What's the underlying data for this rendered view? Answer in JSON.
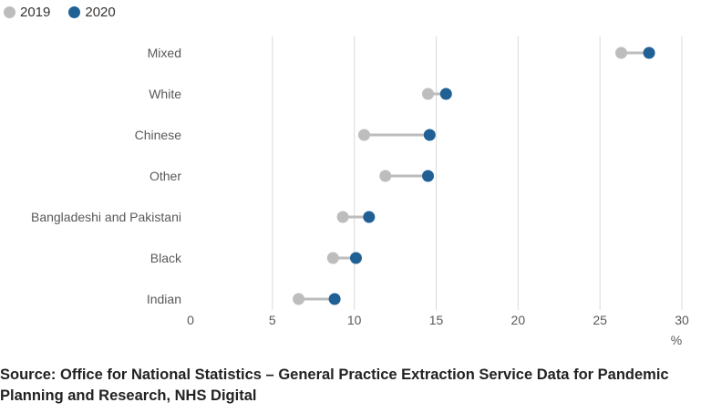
{
  "chart_data": {
    "type": "dumbbell",
    "title": "",
    "xlabel": "%",
    "ylabel": "",
    "xlim": [
      0,
      30
    ],
    "xticks": [
      0,
      5,
      10,
      15,
      20,
      25,
      30
    ],
    "grid": true,
    "legend_position": "top-left",
    "categories": [
      "Mixed",
      "White",
      "Chinese",
      "Other",
      "Bangladeshi and Pakistani",
      "Black",
      "Indian"
    ],
    "series": [
      {
        "name": "2019",
        "color": "#bdbdbd",
        "values": [
          26.3,
          14.5,
          10.6,
          11.9,
          9.3,
          8.7,
          6.6
        ]
      },
      {
        "name": "2020",
        "color": "#206095",
        "values": [
          28.0,
          15.6,
          14.6,
          14.5,
          10.9,
          10.1,
          8.8
        ]
      }
    ]
  },
  "source": "Source: Office for National Statistics – General Practice Extraction Service Data for Pandemic Planning and Research, NHS Digital"
}
